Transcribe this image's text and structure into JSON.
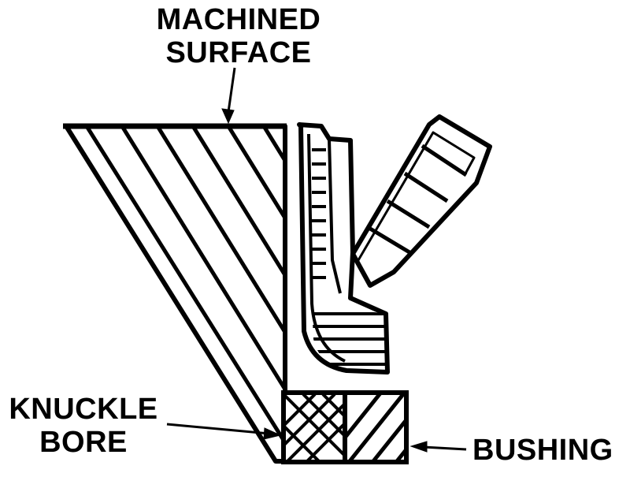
{
  "labels": {
    "machined_surface": [
      "MACHINED",
      "SURFACE"
    ],
    "knuckle_bore": [
      "KNUCKLE",
      "BORE"
    ],
    "bushing": "BUSHING"
  },
  "colors": {
    "ink": "#000000",
    "paper": "#ffffff"
  }
}
